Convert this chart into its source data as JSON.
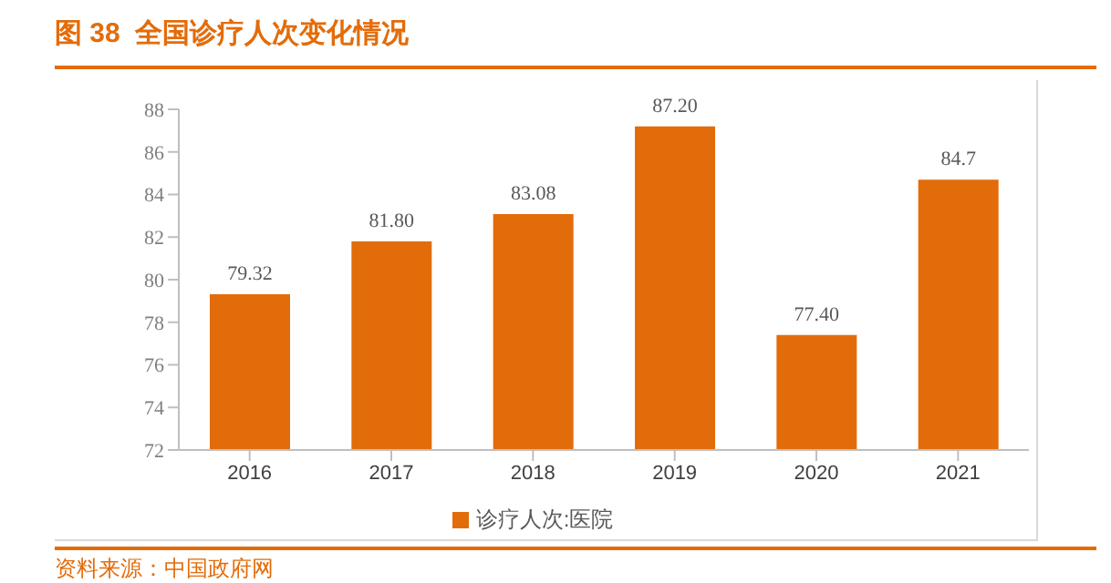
{
  "chart_data": {
    "type": "bar",
    "title": "图 38  全国诊疗人次变化情况",
    "categories": [
      "2016",
      "2017",
      "2018",
      "2019",
      "2020",
      "2021"
    ],
    "series": [
      {
        "name": "诊疗人次:医院",
        "color": "#e36c0a",
        "values": [
          79.32,
          81.8,
          83.08,
          87.2,
          77.4,
          84.7
        ],
        "value_labels": [
          "79.32",
          "81.80",
          "83.08",
          "87.20",
          "77.40",
          "84.7"
        ]
      }
    ],
    "ylim": [
      72,
      88
    ],
    "yticks": [
      72,
      74,
      76,
      78,
      80,
      82,
      84,
      86,
      88
    ],
    "grid": false,
    "legend": "bottom",
    "annotations": [
      "资料来源：中国政府网"
    ]
  }
}
